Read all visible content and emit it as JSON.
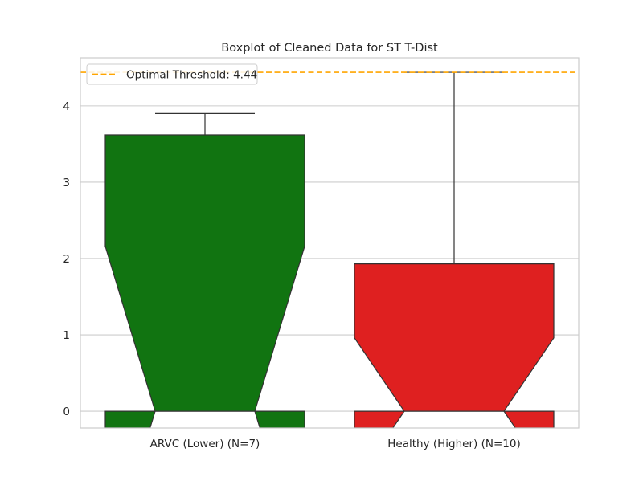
{
  "chart_data": {
    "type": "boxplot",
    "title": "Boxplot of Cleaned Data for ST T-Dist",
    "xlabel": "",
    "ylabel": "",
    "ylim": [
      -0.22,
      4.63
    ],
    "yticks": [
      0,
      1,
      2,
      3,
      4
    ],
    "grid": "horizontal",
    "notched": true,
    "legend": {
      "placement": "top-left",
      "label": "Optimal Threshold: 4.44"
    },
    "threshold": {
      "value": 4.44,
      "color": "#ffa500",
      "style": "dashed"
    },
    "categories": [
      "ARVC (Lower) (N=7)",
      "Healthy (Higher) (N=10)"
    ],
    "boxes": [
      {
        "label": "ARVC (Lower) (N=7)",
        "whisker_low": 0,
        "q1": 0,
        "median": 0,
        "q3": 3.62,
        "whisker_high": 3.9,
        "notch_low": -0.22,
        "notch_high": 2.16,
        "color": "#117411"
      },
      {
        "label": "Healthy (Higher) (N=10)",
        "whisker_low": 0,
        "q1": 0,
        "median": 0,
        "q3": 1.93,
        "whisker_high": 4.44,
        "notch_low": -0.22,
        "notch_high": 0.96,
        "color": "#df2020"
      }
    ]
  }
}
